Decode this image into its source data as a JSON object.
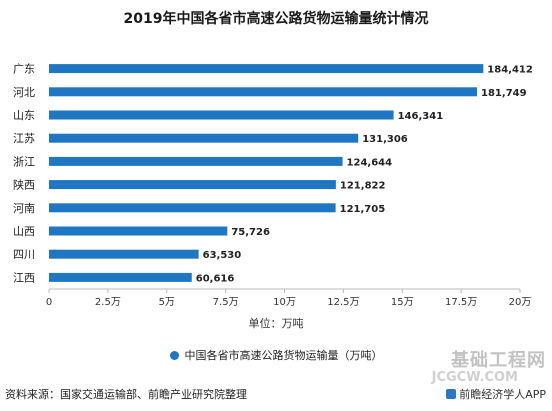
{
  "title": "2019年中国各省市高速公路货物运输量统计情况",
  "unit_label": "单位：万吨",
  "legend": "中国各省市高速公路货物运输量（万吨）",
  "source": "资料来源：国家交通运输部、前瞻产业研究院整理",
  "brand": "前瞻经济学人APP",
  "watermark": "基础工程网",
  "watermark_url": "JCGCW.COM",
  "colors": {
    "bar": "#1f77c4"
  },
  "chart_data": {
    "type": "bar",
    "orientation": "horizontal",
    "title": "2019年中国各省市高速公路货物运输量统计情况",
    "xlabel": "单位：万吨",
    "ylabel": "",
    "categories": [
      "广东",
      "河北",
      "山东",
      "江苏",
      "浙江",
      "陕西",
      "河南",
      "山西",
      "四川",
      "江西"
    ],
    "values": [
      184412,
      181749,
      146341,
      131306,
      124644,
      121822,
      121705,
      75726,
      63530,
      60616
    ],
    "value_labels": [
      "184,412",
      "181,749",
      "146,341",
      "131,306",
      "124,644",
      "121,822",
      "121,705",
      "75,726",
      "63,530",
      "60,616"
    ],
    "xlim": [
      0,
      200000
    ],
    "xticks": [
      0,
      25000,
      50000,
      75000,
      100000,
      125000,
      150000,
      175000,
      200000
    ],
    "xtick_labels": [
      "0",
      "2.5万",
      "5万",
      "7.5万",
      "10万",
      "12.5万",
      "15万",
      "17.5万",
      "20万"
    ],
    "series": [
      {
        "name": "中国各省市高速公路货物运输量（万吨）",
        "values": [
          184412,
          181749,
          146341,
          131306,
          124644,
          121822,
          121705,
          75726,
          63530,
          60616
        ]
      }
    ],
    "grid": false,
    "legend_position": "bottom"
  }
}
